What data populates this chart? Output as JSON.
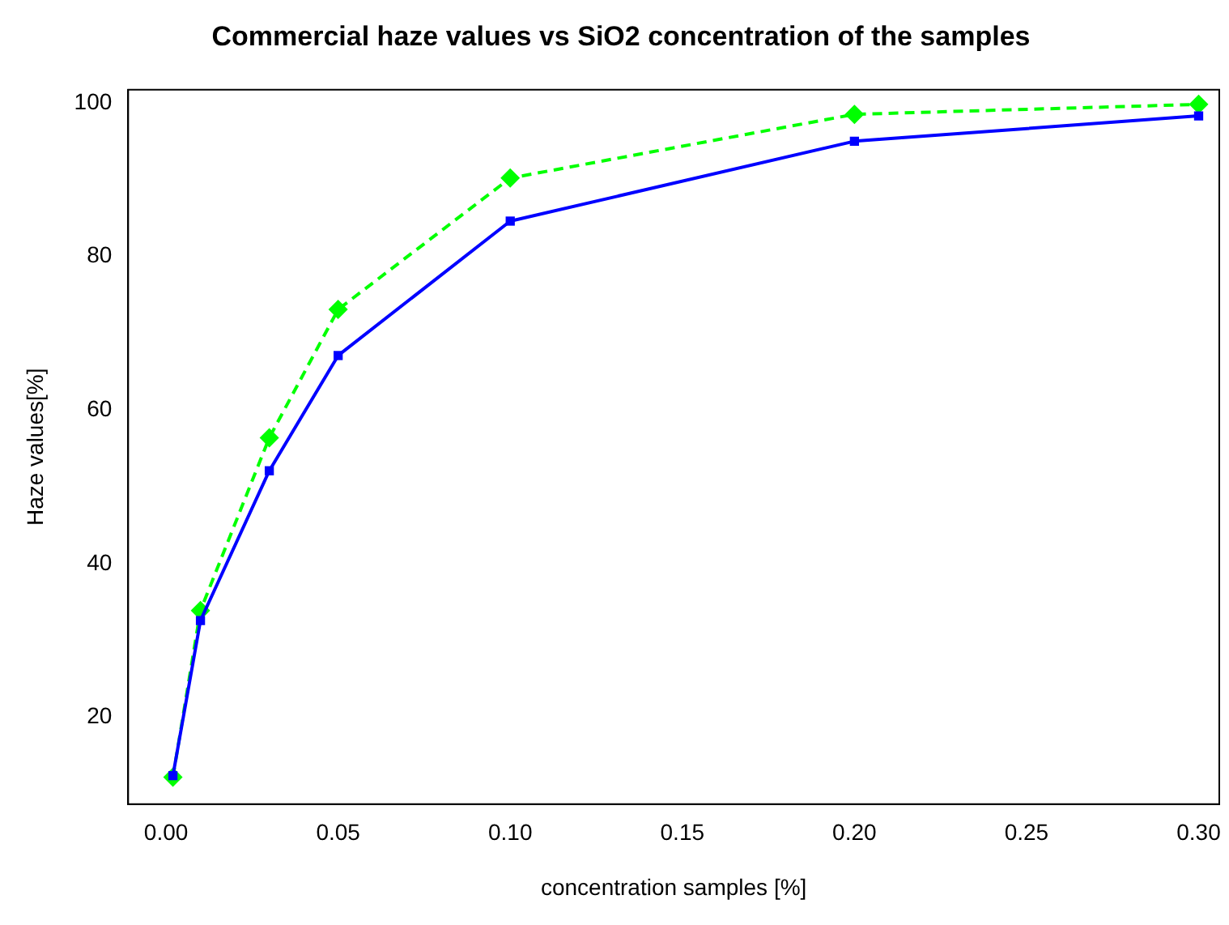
{
  "chart_data": {
    "type": "line",
    "title": "Commercial haze values vs SiO2 concentration of the samples",
    "xlabel": "concentration samples [%]",
    "ylabel": "Haze values[%]",
    "x": [
      0.002,
      0.01,
      0.03,
      0.05,
      0.1,
      0.2,
      0.3
    ],
    "series": [
      {
        "color": "#0000ff",
        "marker": "square",
        "line_style": "solid",
        "values": [
          12.4,
          32.6,
          52.1,
          67.1,
          84.6,
          95.0,
          98.3
        ]
      },
      {
        "color": "#00ff00",
        "marker": "diamond",
        "line_style": "dashed",
        "values": [
          12.2,
          33.9,
          56.4,
          73.1,
          90.2,
          98.5,
          99.8
        ]
      }
    ],
    "xlim": [
      -0.011,
      0.306
    ],
    "ylim": [
      8.7,
      101.7
    ],
    "xticks": [
      {
        "value": 0,
        "label": "0.00"
      },
      {
        "value": 0.05,
        "label": "0.05"
      },
      {
        "value": 0.1,
        "label": "0.10"
      },
      {
        "value": 0.15,
        "label": "0.15"
      },
      {
        "value": 0.2,
        "label": "0.20"
      },
      {
        "value": 0.25,
        "label": "0.25"
      },
      {
        "value": 0.3,
        "label": "0.30"
      }
    ],
    "yticks": [
      20,
      40,
      60,
      80,
      100
    ],
    "grid": false,
    "legend": false
  }
}
